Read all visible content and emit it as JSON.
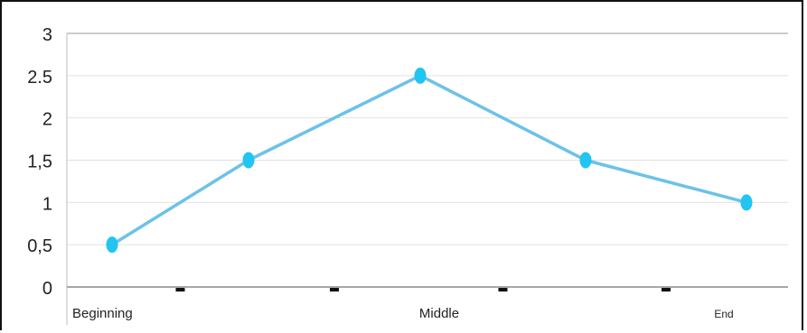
{
  "chart_data": {
    "type": "line",
    "title": "",
    "xlabel": "",
    "ylabel": "",
    "ylim": [
      0,
      3
    ],
    "y_ticks": [
      "0",
      "0,5",
      "1",
      "1,5",
      "2",
      "2.5",
      "3"
    ],
    "y_tick_values": [
      0,
      0.5,
      1,
      1.5,
      2,
      2.5,
      3
    ],
    "x": [
      0,
      1,
      2,
      3,
      4
    ],
    "x_tick_labels": [
      {
        "x": 0,
        "label": "Beginning"
      },
      {
        "x": 2,
        "label": "Middle"
      },
      {
        "x": 4,
        "label": "End"
      }
    ],
    "series": [
      {
        "values": [
          0.5,
          1.5,
          2.5,
          1.5,
          1.0
        ],
        "color": "#6cc2e8",
        "marker_color": "#22c4f2"
      }
    ],
    "grid": true,
    "legend": "none"
  }
}
